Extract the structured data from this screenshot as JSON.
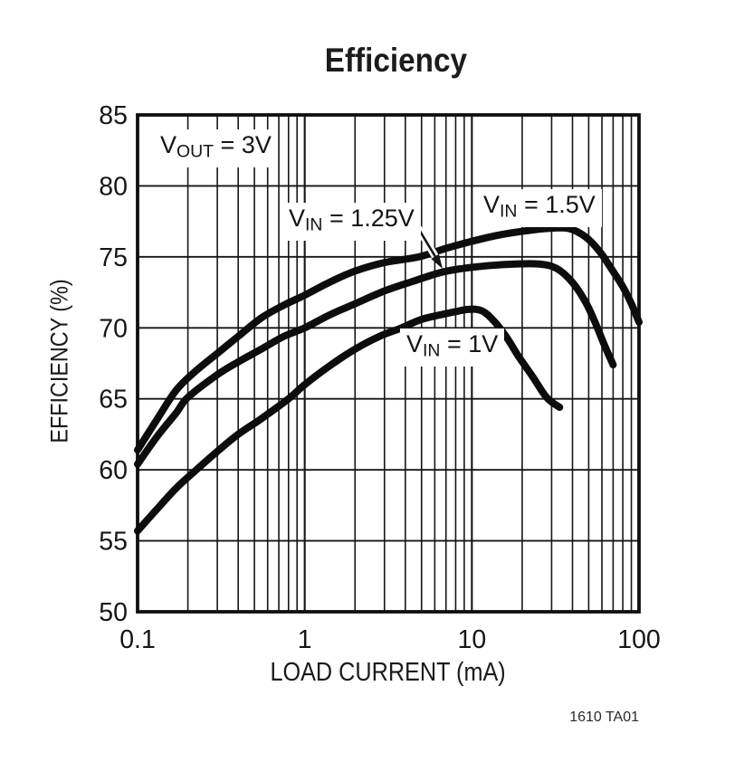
{
  "page": {
    "footer_code": "1610 TA01"
  },
  "chart_data": {
    "type": "line",
    "title": "Efficiency",
    "xlabel": "LOAD CURRENT (mA)",
    "ylabel": "EFFICIENCY (%)",
    "x_scale": "log",
    "xlim": [
      0.1,
      100
    ],
    "ylim": [
      50,
      85
    ],
    "x_ticks": [
      0.1,
      1,
      10,
      100
    ],
    "x_tick_labels": [
      "0.1",
      "1",
      "10",
      "100"
    ],
    "y_ticks": [
      85,
      80,
      75,
      70,
      65,
      60,
      55,
      50
    ],
    "grid": {
      "horizontal": "every 5%",
      "vertical": "log decades with minor lines 2-9"
    },
    "line_color": "#0d0d0d",
    "condition_label": {
      "pre": "V",
      "sub": "OUT",
      "post": " = 3V"
    },
    "annotation_arrow": {
      "points_to": "VIN = 1.25V curve"
    },
    "series": [
      {
        "name": "VIN = 1.5V",
        "label": {
          "pre": "V",
          "sub": "IN",
          "post": " = 1.5V"
        },
        "points": [
          [
            0.1,
            61.4
          ],
          [
            0.13,
            63.5
          ],
          [
            0.17,
            65.6
          ],
          [
            0.22,
            66.9
          ],
          [
            0.3,
            68.2
          ],
          [
            0.4,
            69.4
          ],
          [
            0.55,
            70.7
          ],
          [
            0.75,
            71.6
          ],
          [
            1,
            72.3
          ],
          [
            1.4,
            73.2
          ],
          [
            2,
            74.0
          ],
          [
            3,
            74.6
          ],
          [
            4.8,
            75.0
          ],
          [
            7,
            75.6
          ],
          [
            10,
            76.1
          ],
          [
            14,
            76.5
          ],
          [
            20,
            76.8
          ],
          [
            28,
            77.0
          ],
          [
            38,
            77.0
          ],
          [
            48,
            76.4
          ],
          [
            58,
            75.4
          ],
          [
            68,
            74.2
          ],
          [
            80,
            72.9
          ],
          [
            90,
            71.7
          ],
          [
            100,
            70.4
          ]
        ]
      },
      {
        "name": "VIN = 1.25V",
        "label": {
          "pre": "V",
          "sub": "IN",
          "post": " = 1.25V"
        },
        "points": [
          [
            0.1,
            60.4
          ],
          [
            0.13,
            62.3
          ],
          [
            0.17,
            64.0
          ],
          [
            0.2,
            65.1
          ],
          [
            0.3,
            66.7
          ],
          [
            0.4,
            67.6
          ],
          [
            0.55,
            68.5
          ],
          [
            0.75,
            69.4
          ],
          [
            1,
            70.0
          ],
          [
            1.4,
            70.9
          ],
          [
            2,
            71.7
          ],
          [
            3,
            72.6
          ],
          [
            4.5,
            73.3
          ],
          [
            6.5,
            73.9
          ],
          [
            9,
            74.2
          ],
          [
            13,
            74.4
          ],
          [
            18,
            74.5
          ],
          [
            25,
            74.5
          ],
          [
            32,
            74.2
          ],
          [
            40,
            73.2
          ],
          [
            48,
            71.8
          ],
          [
            55,
            70.3
          ],
          [
            62,
            68.8
          ],
          [
            70,
            67.4
          ]
        ]
      },
      {
        "name": "VIN = 1V",
        "label": {
          "pre": "V",
          "sub": "IN",
          "post": " = 1V"
        },
        "points": [
          [
            0.1,
            55.7
          ],
          [
            0.13,
            57.2
          ],
          [
            0.17,
            58.7
          ],
          [
            0.22,
            59.9
          ],
          [
            0.3,
            61.3
          ],
          [
            0.4,
            62.5
          ],
          [
            0.55,
            63.6
          ],
          [
            0.8,
            65.0
          ],
          [
            1,
            66.0
          ],
          [
            1.4,
            67.3
          ],
          [
            2,
            68.5
          ],
          [
            2.8,
            69.4
          ],
          [
            3.8,
            70.0
          ],
          [
            5,
            70.6
          ],
          [
            7,
            71.0
          ],
          [
            9.5,
            71.3
          ],
          [
            11.5,
            71.2
          ],
          [
            13.5,
            70.5
          ],
          [
            16,
            69.4
          ],
          [
            19,
            68.0
          ],
          [
            23,
            66.6
          ],
          [
            28,
            65.1
          ],
          [
            33.5,
            64.4
          ]
        ]
      }
    ]
  }
}
